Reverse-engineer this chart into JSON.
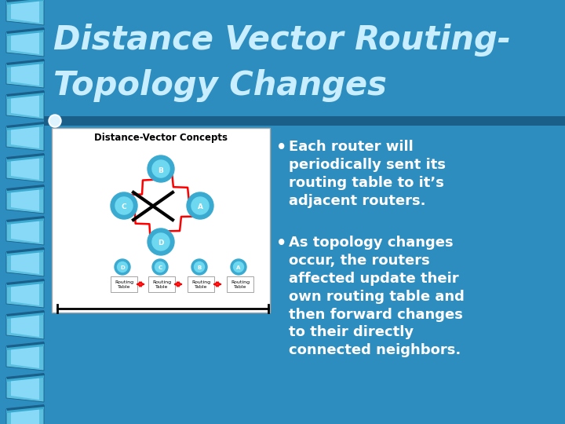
{
  "bg_color": "#2e8dbf",
  "title_line1": "Distance Vector Routing-",
  "title_line2": "Topology Changes",
  "title_color": "#c8eeff",
  "title_fontsize": 30,
  "header_bar_color": "#1a5f8a",
  "bullet1_lines": [
    "Each router will",
    "periodically sent its",
    "routing table to it’s",
    "adjacent routers."
  ],
  "bullet2_lines": [
    "As topology changes",
    "occur, the routers",
    "affected update their",
    "own routing table and",
    "then forward changes",
    "to their directly",
    "connected neighbors."
  ],
  "bullet_color": "white",
  "bullet_fontsize": 13,
  "img_label": "Distance-Vector Concepts",
  "ribbon_outer": "#5bbfe0",
  "ribbon_inner": "#88d8f8",
  "ribbon_dark": "#1a5f8a",
  "ribbon_mid": "#3aaad0"
}
